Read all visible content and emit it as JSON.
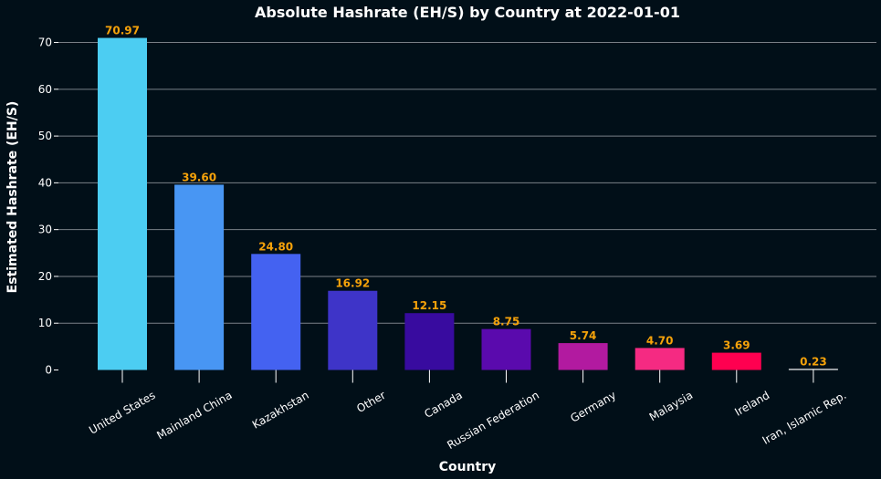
{
  "chart_data": {
    "type": "bar",
    "title": "Absolute Hashrate (EH/S) by Country at 2022-01-01",
    "xlabel": "Country",
    "ylabel": "Estimated Hashrate (EH/S)",
    "categories": [
      "United States",
      "Mainland China",
      "Kazakhstan",
      "Other",
      "Canada",
      "Russian Federation",
      "Germany",
      "Malaysia",
      "Ireland",
      "Iran, Islamic Rep."
    ],
    "values": [
      70.97,
      39.6,
      24.8,
      16.92,
      12.15,
      8.75,
      5.74,
      4.7,
      3.69,
      0.23
    ],
    "value_labels": [
      "70.97",
      "39.60",
      "24.80",
      "16.92",
      "12.15",
      "8.75",
      "5.74",
      "4.70",
      "3.69",
      "0.23"
    ],
    "bar_colors": [
      "#4ccdf2",
      "#4896f3",
      "#4462f1",
      "#3e34c8",
      "#380b9f",
      "#5a0aad",
      "#b21aa0",
      "#f52a82",
      "#ff0050",
      "#ffffff"
    ],
    "yticks": [
      0,
      10,
      20,
      30,
      40,
      50,
      60,
      70
    ],
    "ylim": [
      0,
      72
    ],
    "grid": "horizontal",
    "background_color": "#010f18",
    "gridline_color": "#7a8087",
    "value_label_color": "#f5a20a",
    "text_color": "#ffffff"
  }
}
